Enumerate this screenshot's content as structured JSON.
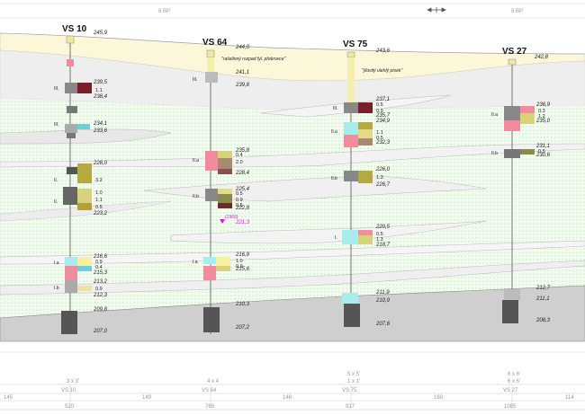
{
  "header": {
    "left_label": "8 BP",
    "right_label": "9 BP",
    "arrow_icon": "double-arrow-icon"
  },
  "boreholes": [
    {
      "id": "VS 10",
      "top": "245,9",
      "elevations": [
        "239,5",
        "238,4",
        "234,1",
        "233,6",
        "228,0",
        "223,2",
        "216,6",
        "215,3",
        "213,2",
        "212,3",
        "209,8",
        "207,0"
      ],
      "numbers": [
        "1.1",
        "3.2",
        "1.0",
        "1.1",
        "0.5",
        "0.9",
        "0.4",
        "0.9"
      ],
      "layers": [
        "III.",
        "III.",
        "II.",
        "II.",
        "I.a",
        "I.b"
      ]
    },
    {
      "id": "VS 64",
      "top": "244,0",
      "note": "\"rašelinný rozpad fyl. překrovce\"",
      "elevations": [
        "241,1",
        "239,8",
        "235,8",
        "228,4",
        "225,4",
        "222,8",
        "221,3",
        "216,9",
        "215,6",
        "210,3",
        "207,2"
      ],
      "numbers": [
        "0.4",
        "2.0",
        "0.5",
        "0.9",
        "0.5",
        "1.0",
        "0.9"
      ],
      "layers": [
        "III.",
        "II.a",
        "II.b",
        "I.a"
      ],
      "water_year": "(1960)"
    },
    {
      "id": "VS 75",
      "top": "243,6",
      "note": "\"jílovitý ulehlý písek\"",
      "elevations": [
        "237,1",
        "235,7",
        "234,9",
        "232,3",
        "226,0",
        "226,7",
        "220,5",
        "218,7",
        "211,9",
        "210,9",
        "207,6"
      ],
      "numbers": [
        "0.5",
        "0.9",
        "1.1",
        "0.5",
        "1.3",
        "0.5",
        "1.3"
      ],
      "layers": [
        "III.",
        "II.a",
        "II.b",
        "I."
      ]
    },
    {
      "id": "VS 27",
      "top": "242,8",
      "elevations": [
        "236,9",
        "235,0",
        "231,1",
        "230,6",
        "212,7",
        "211,1",
        "208,3"
      ],
      "numbers": [
        "0.3",
        "1.2",
        "0.5"
      ],
      "layers": [
        "II.a",
        "II.b"
      ]
    }
  ],
  "bottom_table": {
    "sizes": [
      "3 x 3'",
      "4 x 4",
      "5 x 5'",
      "6 x 6'"
    ],
    "sizes_sub": [
      "",
      "",
      "1 x 1'",
      "6 x 6'"
    ],
    "row_labels": [
      "VS 10",
      "VS 64",
      "VS 75",
      "VS 27"
    ],
    "spacings": [
      "145",
      "149",
      "146",
      "168",
      "114"
    ],
    "stations": [
      "520",
      "769",
      "917",
      "1085"
    ]
  }
}
